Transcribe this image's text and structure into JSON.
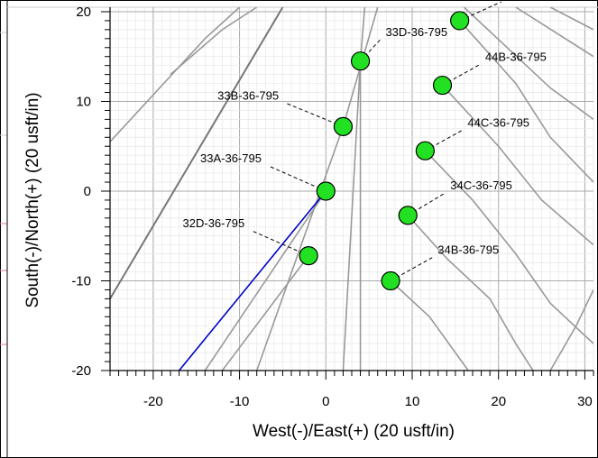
{
  "chart_data": {
    "type": "scatter",
    "title": "",
    "xlabel": "West(-)/East(+) (20 usft/in)",
    "ylabel": "South(-)/North(+) (20 usft/in)",
    "xlim": [
      -25,
      31
    ],
    "ylim": [
      -20,
      20.5
    ],
    "x_ticks": [
      -20,
      -10,
      0,
      10,
      20,
      30
    ],
    "y_ticks": [
      -20,
      -10,
      0,
      10,
      20
    ],
    "x_tick_labels": [
      "-20",
      "-10",
      "0",
      "10",
      "20",
      "30"
    ],
    "y_tick_labels": [
      "-20",
      "-10",
      "0",
      "10",
      "20"
    ],
    "grid": true,
    "legend": "none",
    "colors": {
      "well_marker": "#22e022",
      "subject_well_path": "#0000cc",
      "offset_well_path": "#999999",
      "offset_well_path_dark": "#777777"
    },
    "wells": [
      {
        "label": "44A-36-795",
        "x": 15.5,
        "y": 19.0,
        "label_x": 24.5,
        "label_y": 21.5
      },
      {
        "label": "33D-36-795",
        "x": 4.0,
        "y": 14.5,
        "label_x": 10.5,
        "label_y": 17.3
      },
      {
        "label": "44B-36-795",
        "x": 13.5,
        "y": 11.8,
        "label_x": 22.0,
        "label_y": 14.5
      },
      {
        "label": "33B-36-795",
        "x": 2.0,
        "y": 7.2,
        "label_x": -9.0,
        "label_y": 10.2
      },
      {
        "label": "44C-36-795",
        "x": 11.5,
        "y": 4.5,
        "label_x": 20.0,
        "label_y": 7.2
      },
      {
        "label": "33A-36-795",
        "x": 0.0,
        "y": 0.0,
        "label_x": -11.0,
        "label_y": 3.2
      },
      {
        "label": "34C-36-795",
        "x": 9.5,
        "y": -2.7,
        "label_x": 18.0,
        "label_y": 0.2
      },
      {
        "label": "32D-36-795",
        "x": -2.0,
        "y": -7.2,
        "label_x": -13.0,
        "label_y": -4.0
      },
      {
        "label": "34B-36-795",
        "x": 7.5,
        "y": -10.0,
        "label_x": 16.5,
        "label_y": -7.0
      }
    ],
    "paths": [
      {
        "points": [
          [
            -25,
            5.5
          ],
          [
            -14,
            17.0
          ],
          [
            -10,
            20.5
          ]
        ],
        "color": "#999999"
      },
      {
        "points": [
          [
            -18,
            13.0
          ],
          [
            -12,
            18.0
          ],
          [
            -8,
            20.5
          ]
        ],
        "color": "#999999"
      },
      {
        "points": [
          [
            -25,
            -12.0
          ],
          [
            -5,
            20.5
          ]
        ],
        "color": "#777777"
      },
      {
        "points": [
          [
            -14,
            -20
          ],
          [
            0,
            0
          ]
        ],
        "color": "#999999"
      },
      {
        "points": [
          [
            -8,
            -20
          ],
          [
            2,
            7.2
          ],
          [
            6,
            20.5
          ]
        ],
        "color": "#999999"
      },
      {
        "points": [
          [
            2,
            -20
          ],
          [
            4,
            14.5
          ],
          [
            4.5,
            20.5
          ]
        ],
        "color": "#999999"
      },
      {
        "points": [
          [
            4,
            -20
          ],
          [
            4,
            14.5
          ]
        ],
        "color": "#999999"
      },
      {
        "points": [
          [
            -12,
            -20
          ],
          [
            -2,
            -7.2
          ]
        ],
        "color": "#999999"
      },
      {
        "points": [
          [
            15.5,
            19.0
          ],
          [
            22,
            12.0
          ],
          [
            26,
            6.0
          ],
          [
            31,
            1.0
          ]
        ],
        "color": "#999999"
      },
      {
        "points": [
          [
            16,
            20.5
          ],
          [
            26,
            11.5
          ],
          [
            31,
            8.0
          ]
        ],
        "color": "#999999"
      },
      {
        "points": [
          [
            22,
            20.5
          ],
          [
            31,
            15.0
          ]
        ],
        "color": "#999999"
      },
      {
        "points": [
          [
            26,
            20.5
          ],
          [
            31,
            18.0
          ]
        ],
        "color": "#999999"
      },
      {
        "points": [
          [
            13.5,
            11.8
          ],
          [
            20,
            5.0
          ],
          [
            25,
            -1.0
          ],
          [
            31,
            -6.0
          ]
        ],
        "color": "#999999"
      },
      {
        "points": [
          [
            11.5,
            4.5
          ],
          [
            17,
            -1.0
          ],
          [
            22,
            -7.0
          ],
          [
            26,
            -12.5
          ],
          [
            31,
            -17.0
          ]
        ],
        "color": "#999999"
      },
      {
        "points": [
          [
            9.5,
            -2.7
          ],
          [
            14,
            -7.5
          ],
          [
            19,
            -12.0
          ],
          [
            22,
            -17.0
          ],
          [
            24,
            -20
          ]
        ],
        "color": "#999999"
      },
      {
        "points": [
          [
            7.5,
            -10.0
          ],
          [
            12,
            -14.0
          ],
          [
            15,
            -18.0
          ],
          [
            16.5,
            -20
          ]
        ],
        "color": "#999999"
      },
      {
        "points": [
          [
            26,
            -20
          ],
          [
            29,
            -15.0
          ],
          [
            31,
            -11.0
          ]
        ],
        "color": "#999999"
      }
    ],
    "subject_path": {
      "points": [
        [
          -17,
          -20
        ],
        [
          0,
          0
        ]
      ],
      "color": "#0000cc"
    }
  }
}
